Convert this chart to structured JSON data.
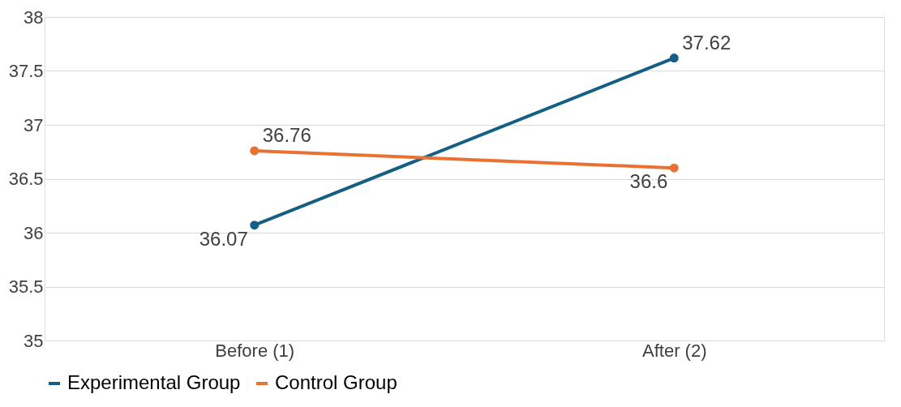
{
  "chart_data": {
    "type": "line",
    "categories": [
      "Before (1)",
      "After (2)"
    ],
    "series": [
      {
        "name": "Experimental Group",
        "color": "#156082",
        "values": [
          36.07,
          37.62
        ]
      },
      {
        "name": "Control Group",
        "color": "#e97132",
        "values": [
          36.76,
          36.6
        ]
      }
    ],
    "ylim": [
      35,
      38
    ],
    "yticks": [
      35,
      35.5,
      36,
      36.5,
      37,
      37.5,
      38
    ],
    "grid": "y",
    "legend": "bottom",
    "marker": "circle",
    "data_labels": true
  }
}
